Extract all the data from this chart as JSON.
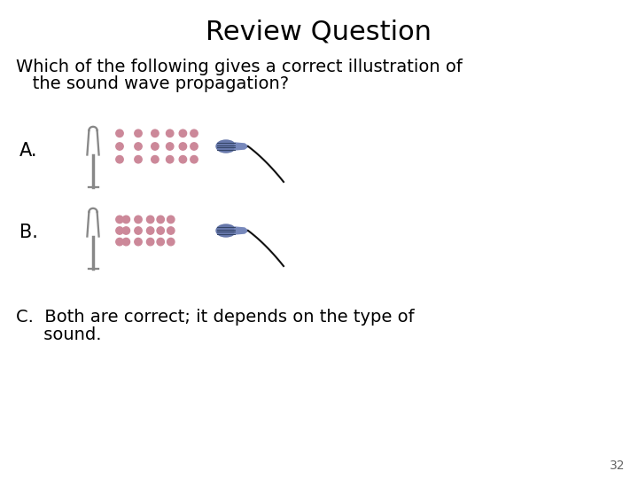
{
  "title": "Review Question",
  "question_line1": "Which of the following gives a correct illustration of",
  "question_line2": "   the sound wave propagation?",
  "option_a_label": "A.",
  "option_b_label": "B.",
  "option_c_line1": "C.  Both are correct; it depends on the type of",
  "option_c_line2": "     sound.",
  "page_number": "32",
  "bg_color": "#ffffff",
  "text_color": "#000000",
  "dot_color": "#cc8899",
  "title_fontsize": 22,
  "question_fontsize": 14,
  "option_fontsize": 14,
  "label_fontsize": 15,
  "page_fontsize": 10,
  "fork_color": "#aaaaaa",
  "fork_outline": "#888888"
}
